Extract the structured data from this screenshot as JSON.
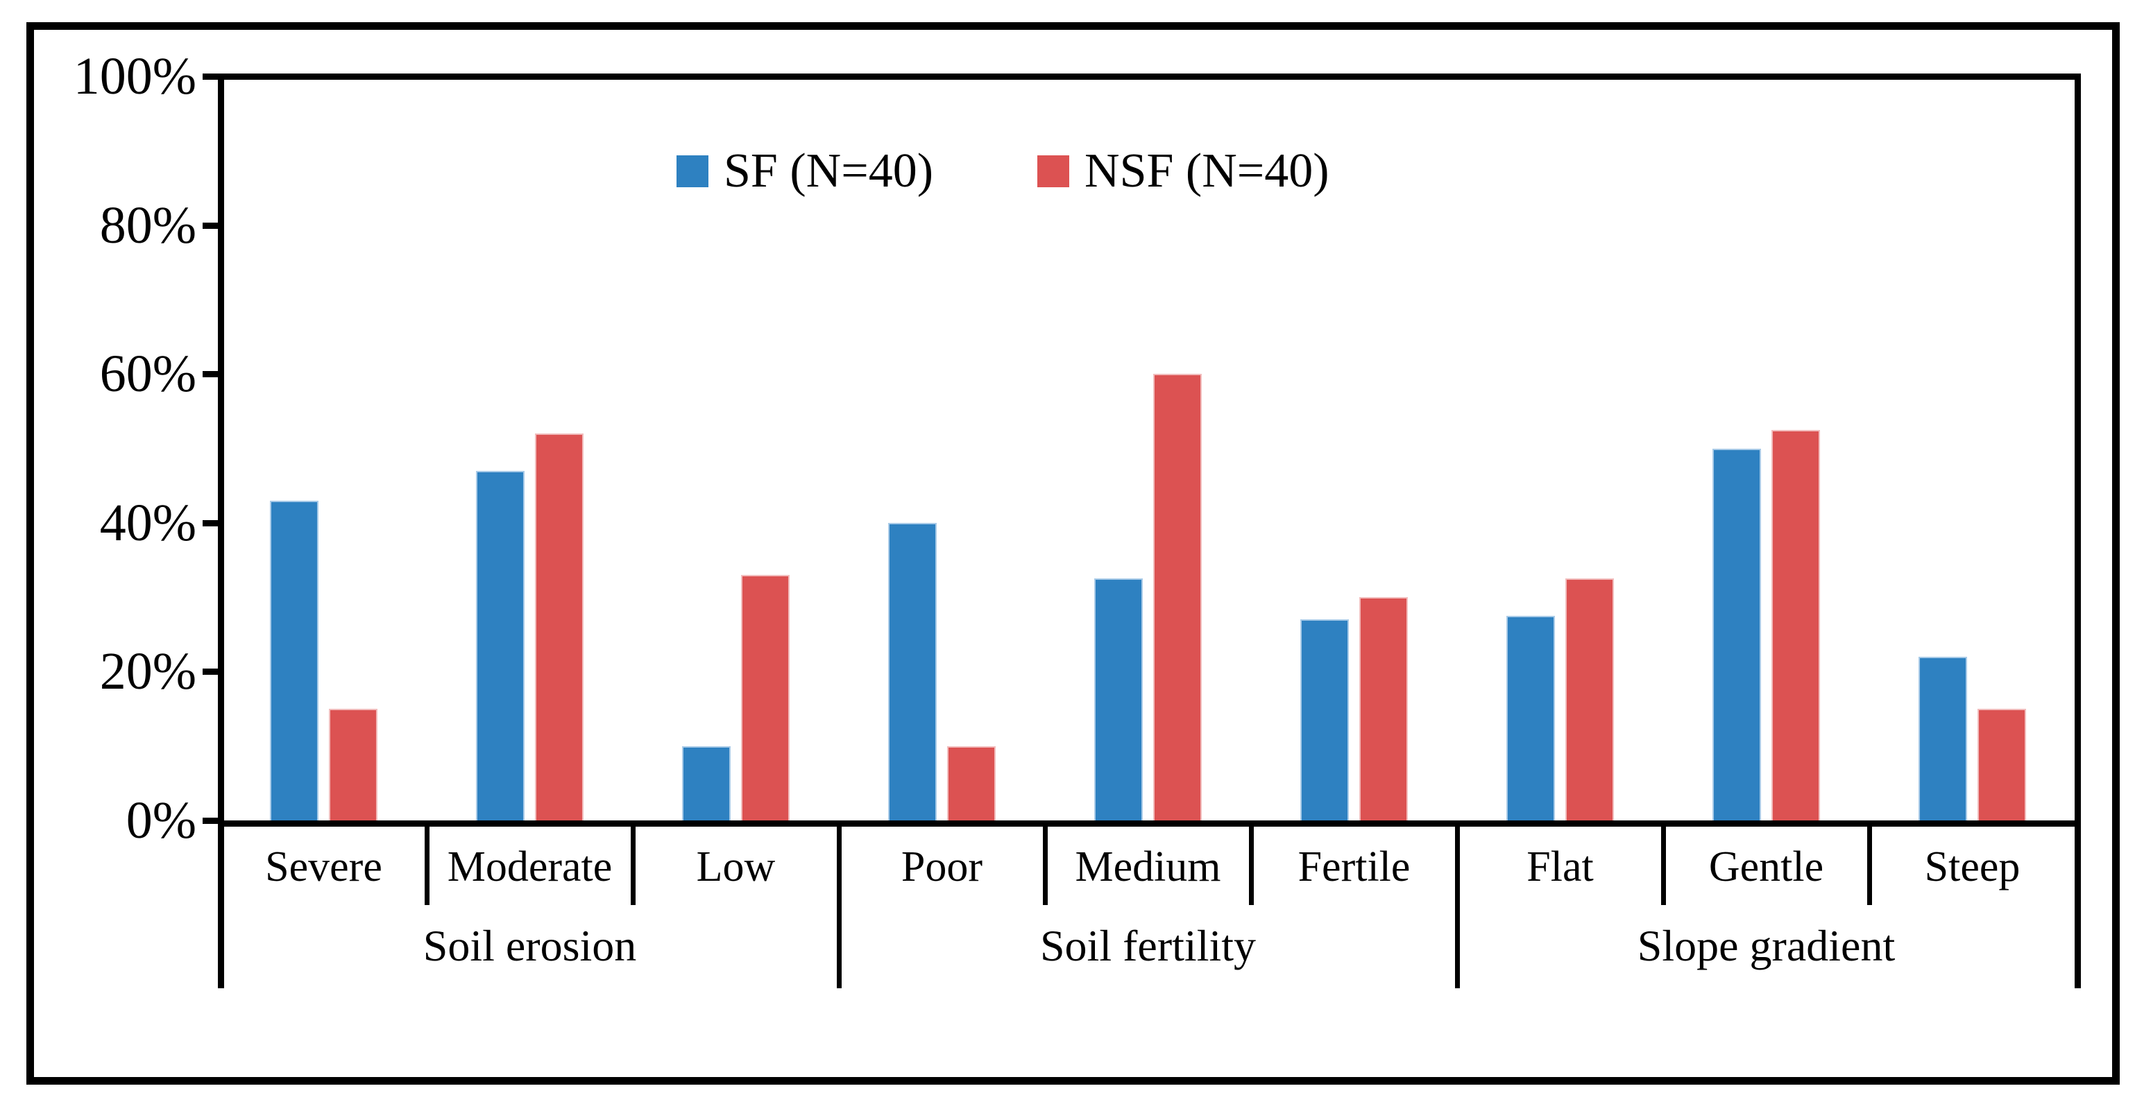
{
  "chart_data": {
    "type": "bar",
    "title": "",
    "xlabel": "",
    "ylabel": "",
    "ylim": [
      0,
      100
    ],
    "ytick_step": 20,
    "ytick_labels": [
      "0%",
      "20%",
      "40%",
      "60%",
      "80%",
      "100%"
    ],
    "grid": false,
    "legend_position": "top-center-inside",
    "groups": [
      {
        "label": "Soil erosion",
        "categories": [
          "Severe",
          "Moderate",
          "Low"
        ]
      },
      {
        "label": "Soil fertility",
        "categories": [
          "Poor",
          "Medium",
          "Fertile"
        ]
      },
      {
        "label": "Slope gradient",
        "categories": [
          "Flat",
          "Gentle",
          "Steep"
        ]
      }
    ],
    "categories": [
      "Severe",
      "Moderate",
      "Low",
      "Poor",
      "Medium",
      "Fertile",
      "Flat",
      "Gentle",
      "Steep"
    ],
    "series": [
      {
        "name": "SF (N=40)",
        "color": "#2E81C1",
        "edge_color": "#A9CBE8",
        "values": [
          43,
          47,
          10,
          40,
          32.5,
          27,
          27.5,
          50,
          22
        ]
      },
      {
        "name": "NSF (N=40)",
        "color": "#DC5252",
        "edge_color": "#F2BDBD",
        "values": [
          15,
          52,
          33,
          10,
          60,
          30,
          32.5,
          52.5,
          15
        ]
      }
    ]
  },
  "legend": {
    "items": [
      {
        "label": "SF (N=40)",
        "color": "#2E81C1"
      },
      {
        "label": "NSF (N=40)",
        "color": "#DC5252"
      }
    ]
  },
  "axis": {
    "color": "#000000"
  }
}
